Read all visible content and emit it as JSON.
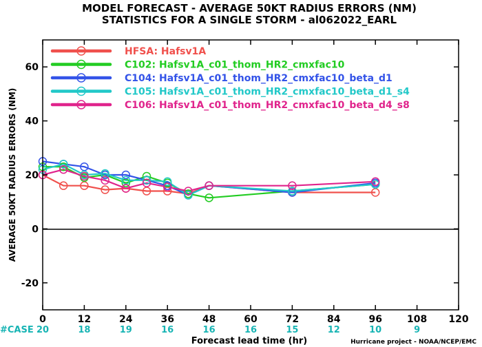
{
  "chart_data": {
    "type": "line",
    "title": "MODEL FORECAST - AVERAGE 50KT RADIUS ERRORS (NM)",
    "subtitle": "STATISTICS FOR A SINGLE STORM - al062022_EARL",
    "xlabel": "Forecast lead time (hr)",
    "ylabel": "AVERAGE 50KT RADIUS ERRORS (NM)",
    "xlim": [
      0,
      120
    ],
    "ylim": [
      -30,
      70
    ],
    "xticks": [
      "0",
      "12",
      "24",
      "36",
      "48",
      "60",
      "72",
      "84",
      "96",
      "108",
      "120"
    ],
    "yticks": [
      "-20",
      "0",
      "20",
      "40",
      "60"
    ],
    "grid": false,
    "legend_position": "top-left",
    "series": [
      {
        "name": "HFSA: Hafsv1A",
        "color": "#f0504c",
        "x": [
          0,
          6,
          12,
          18,
          24,
          30,
          36,
          42,
          48,
          72,
          96
        ],
        "y": [
          20,
          16,
          16,
          14.5,
          15,
          14,
          14,
          13,
          16,
          13.5,
          13.5
        ]
      },
      {
        "name": "C102: Hafsv1A_c01_thom_HR2_cmxfac10",
        "color": "#22cc22",
        "x": [
          0,
          6,
          12,
          18,
          24,
          30,
          36,
          42,
          48,
          72,
          96
        ],
        "y": [
          23,
          23,
          19,
          20,
          17,
          19.5,
          17,
          13,
          11.5,
          14,
          16.5
        ]
      },
      {
        "name": "C104: Hafsv1A_c01_thom_HR2_cmxfac10_beta_d1",
        "color": "#3353e8",
        "x": [
          0,
          6,
          12,
          18,
          24,
          30,
          36,
          42,
          48,
          72,
          96
        ],
        "y": [
          25,
          24,
          23,
          20,
          20,
          18,
          16,
          12.5,
          16,
          13.5,
          17
        ]
      },
      {
        "name": "C105: Hafsv1A_c01_thom_HR2_cmxfac10_beta_d1_s4",
        "color": "#22c8c8",
        "x": [
          0,
          6,
          12,
          18,
          24,
          30,
          36,
          42,
          48,
          72,
          96
        ],
        "y": [
          22,
          24,
          20,
          20.5,
          18,
          18,
          17.5,
          12.5,
          16,
          14,
          16.5
        ]
      },
      {
        "name": "C106: Hafsv1A_c01_thom_HR2_cmxfac10_beta_d4_s8",
        "color": "#e0248c",
        "x": [
          0,
          6,
          12,
          18,
          24,
          30,
          36,
          42,
          48,
          72,
          96
        ],
        "y": [
          20,
          22,
          19.5,
          18,
          15,
          17,
          15.5,
          14,
          16,
          16,
          17.5
        ]
      }
    ],
    "case_label": "#CASE",
    "case_counts": [
      {
        "x": 0,
        "n": "20"
      },
      {
        "x": 12,
        "n": "18"
      },
      {
        "x": 24,
        "n": "19"
      },
      {
        "x": 36,
        "n": "16"
      },
      {
        "x": 48,
        "n": "16"
      },
      {
        "x": 60,
        "n": "16"
      },
      {
        "x": 72,
        "n": "15"
      },
      {
        "x": 84,
        "n": "12"
      },
      {
        "x": 96,
        "n": "10"
      },
      {
        "x": 108,
        "n": "9"
      }
    ],
    "footer": "Hurricane project - NOAA/NCEP/EMC",
    "colors": {
      "axis": "#000000",
      "case": "#17b4b4"
    }
  }
}
